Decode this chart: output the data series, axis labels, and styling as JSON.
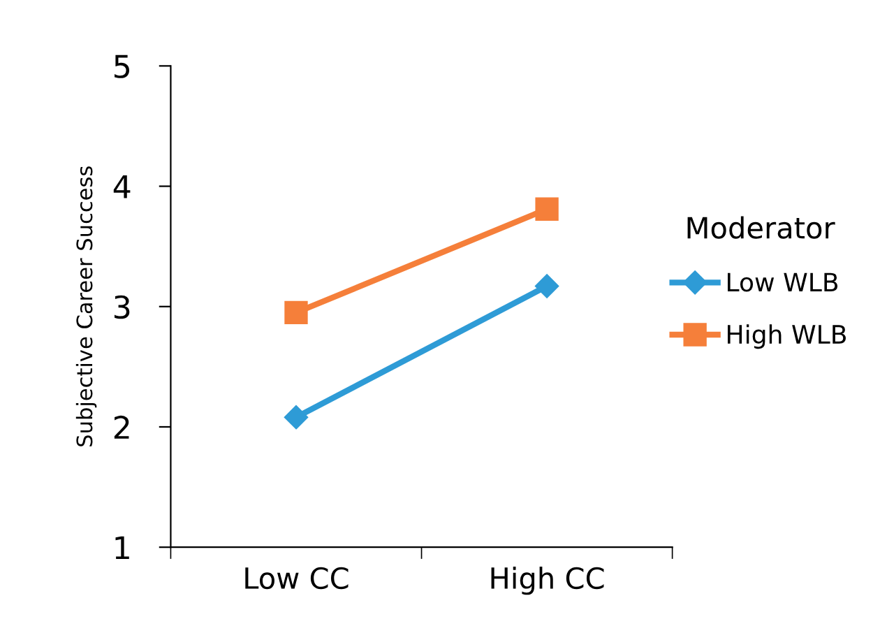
{
  "chart_data": {
    "type": "line",
    "ylabel": "Subjective Career Success",
    "legend_title": "Moderator",
    "categories": [
      "Low CC",
      "High CC"
    ],
    "series": [
      {
        "name": "Low WLB",
        "color": "#2e9bd6",
        "values": [
          2.08,
          3.17
        ],
        "marker": "diamond"
      },
      {
        "name": "High WLB",
        "color": "#f57f3a",
        "values": [
          2.95,
          3.81
        ],
        "marker": "square"
      }
    ],
    "ylim": [
      1,
      5
    ],
    "yticks": [
      1,
      2,
      3,
      4,
      5
    ],
    "grid": false,
    "legend": "right",
    "line_style": "solid"
  }
}
